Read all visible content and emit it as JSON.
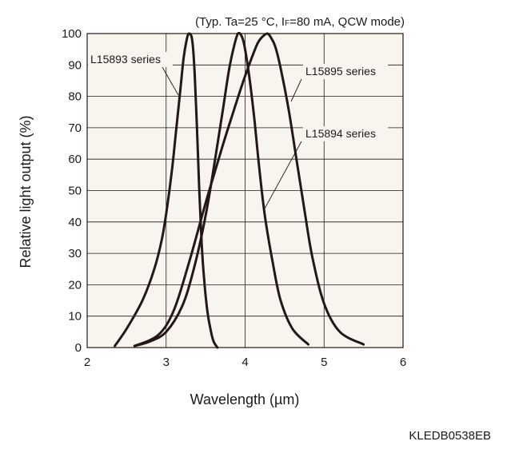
{
  "conditions": {
    "prefix": "(Typ. Ta=25 °C, I",
    "subscript": "F",
    "suffix": "=80 mA, QCW mode)"
  },
  "figure_code": "KLEDB0538EB",
  "colors": {
    "background": "#f8f5ee",
    "curve": "#231815",
    "grid": "#231815"
  },
  "chart_data": {
    "type": "line",
    "xlabel": "Wavelength (µm)",
    "ylabel": "Relative light output (%)",
    "xlim": [
      2,
      6
    ],
    "ylim": [
      0,
      100
    ],
    "xticks": [
      "2",
      "3",
      "4",
      "5",
      "6"
    ],
    "yticks": [
      "0",
      "10",
      "20",
      "30",
      "40",
      "50",
      "60",
      "70",
      "80",
      "90",
      "100"
    ],
    "grid": true,
    "series": [
      {
        "name": "L15893 series",
        "x": [
          2.35,
          2.5,
          2.7,
          2.85,
          2.95,
          3.02,
          3.08,
          3.13,
          3.18,
          3.22,
          3.26,
          3.29,
          3.33,
          3.36,
          3.39,
          3.42,
          3.45,
          3.48,
          3.52,
          3.56,
          3.6,
          3.65
        ],
        "y": [
          0.5,
          6,
          15,
          25,
          35,
          46,
          58,
          70,
          82,
          92,
          98,
          100,
          98,
          88,
          70,
          50,
          33,
          22,
          12,
          6,
          2,
          0
        ]
      },
      {
        "name": "L15894 series",
        "x": [
          2.6,
          2.8,
          3.0,
          3.2,
          3.35,
          3.5,
          3.62,
          3.72,
          3.8,
          3.86,
          3.91,
          3.96,
          4.0,
          4.06,
          4.12,
          4.18,
          4.25,
          4.35,
          4.45,
          4.6,
          4.8
        ],
        "y": [
          0.5,
          2,
          5,
          13,
          25,
          42,
          60,
          76,
          89,
          96,
          100,
          99,
          95,
          85,
          72,
          57,
          42,
          27,
          15,
          6,
          1
        ]
      },
      {
        "name": "L15895 series",
        "x": [
          2.6,
          2.9,
          3.1,
          3.3,
          3.5,
          3.7,
          3.85,
          3.98,
          4.08,
          4.16,
          4.22,
          4.28,
          4.32,
          4.38,
          4.45,
          4.55,
          4.65,
          4.75,
          4.85,
          5.0,
          5.2,
          5.5
        ],
        "y": [
          0.5,
          4,
          12,
          28,
          46,
          63,
          75,
          85,
          92,
          97,
          99,
          100,
          99,
          96,
          89,
          76,
          60,
          44,
          29,
          14,
          5,
          1
        ]
      }
    ],
    "annotations": [
      {
        "text": "L15893 series",
        "series": "L15893 series"
      },
      {
        "text": "L15895 series",
        "series": "L15895 series"
      },
      {
        "text": "L15894 series",
        "series": "L15894 series"
      }
    ]
  }
}
